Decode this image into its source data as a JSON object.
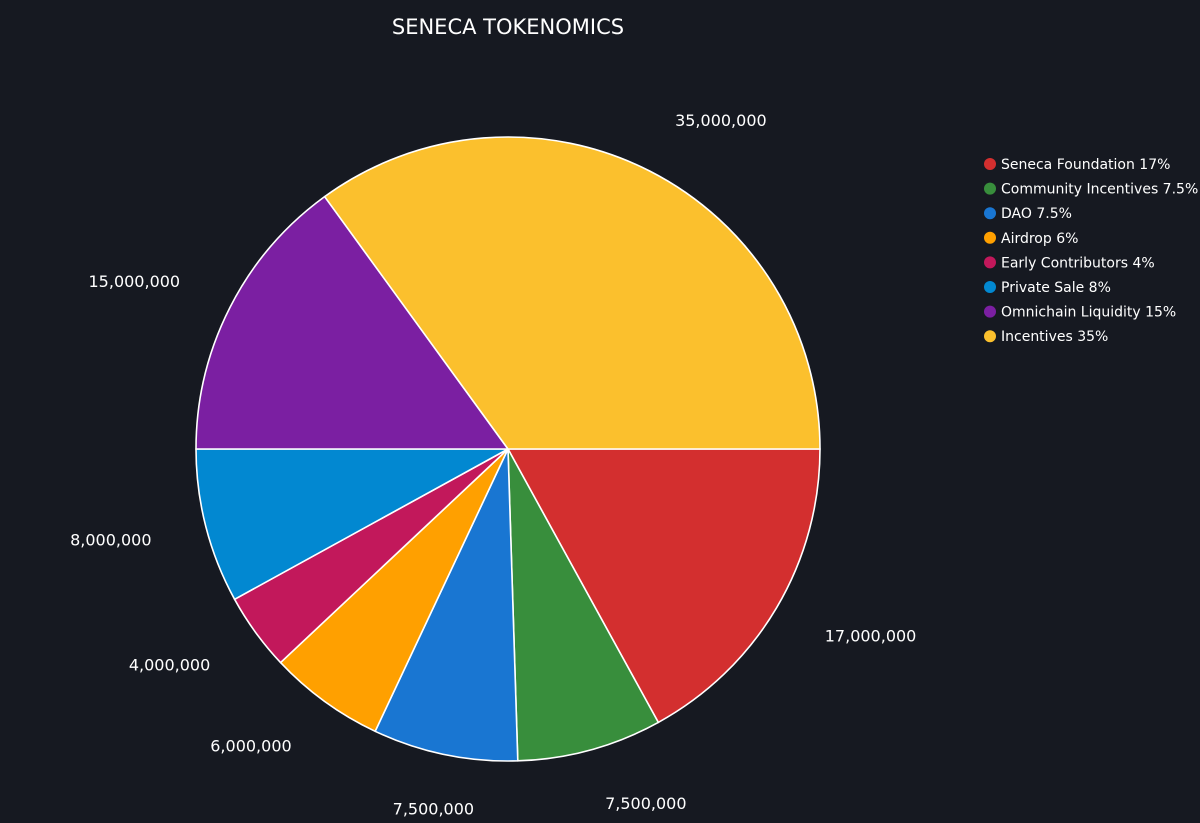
{
  "chart_data": {
    "type": "pie",
    "title": "SENECA TOKENOMICS",
    "legend_position": "right",
    "slices": [
      {
        "name": "Seneca Foundation 17%",
        "value": 17000000,
        "label": "17,000,000",
        "color": "#d32f2f"
      },
      {
        "name": "Community Incentives 7.5%",
        "value": 7500000,
        "label": "7,500,000",
        "color": "#388e3c"
      },
      {
        "name": "DAO 7.5%",
        "value": 7500000,
        "label": "7,500,000",
        "color": "#1976d2"
      },
      {
        "name": "Airdrop 6%",
        "value": 6000000,
        "label": "6,000,000",
        "color": "#ffa000"
      },
      {
        "name": "Early Contributors 4%",
        "value": 4000000,
        "label": "4,000,000",
        "color": "#c2185b"
      },
      {
        "name": "Private Sale 8%",
        "value": 8000000,
        "label": "8,000,000",
        "color": "#0288d1"
      },
      {
        "name": "Omnichain Liquidity 15%",
        "value": 15000000,
        "label": "15,000,000",
        "color": "#7b1fa2"
      },
      {
        "name": "Incentives 35%",
        "value": 35000000,
        "label": "35,000,000",
        "color": "#fbc02d"
      }
    ]
  }
}
